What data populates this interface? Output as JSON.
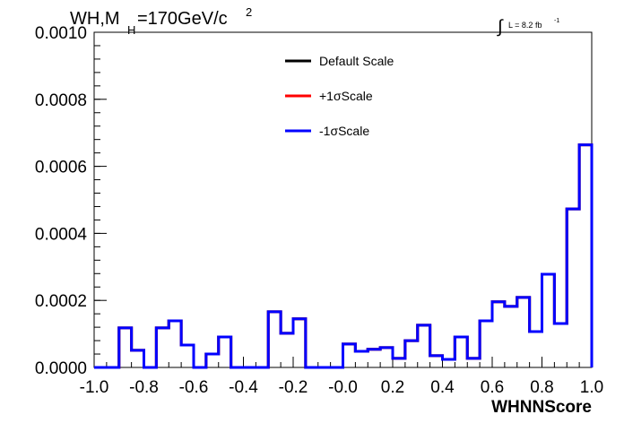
{
  "title": {
    "main": "WH,M",
    "sub": "H",
    "rest": "=170GeV/c",
    "sup": "2"
  },
  "lumi": {
    "text": "L = 8.2 fb",
    "sup": "-1",
    "integral": "∫"
  },
  "chart_data": {
    "type": "histogram-step",
    "xlabel": "WHNNScore",
    "ylabel": "",
    "xlim": [
      -1.0,
      1.0
    ],
    "ylim": [
      0.0,
      0.001
    ],
    "x_ticks": [
      "-1.0",
      "-0.8",
      "-0.6",
      "-0.4",
      "-0.2",
      "-0.0",
      "0.2",
      "0.4",
      "0.6",
      "0.8",
      "1.0"
    ],
    "y_ticks": [
      "0.0000",
      "0.0002",
      "0.0004",
      "0.0006",
      "0.0008",
      "0.0010"
    ],
    "bin_edges": [
      -1.0,
      -0.95,
      -0.9,
      -0.85,
      -0.8,
      -0.75,
      -0.7,
      -0.65,
      -0.6,
      -0.55,
      -0.5,
      -0.45,
      -0.4,
      -0.35,
      -0.3,
      -0.25,
      -0.2,
      -0.15,
      -0.1,
      -0.05,
      0.0,
      0.05,
      0.1,
      0.15,
      0.2,
      0.25,
      0.3,
      0.35,
      0.4,
      0.45,
      0.5,
      0.55,
      0.6,
      0.65,
      0.7,
      0.75,
      0.8,
      0.85,
      0.9,
      0.95,
      1.0
    ],
    "series": [
      {
        "name": "Default Scale",
        "color": "#000000",
        "values": [
          0,
          0,
          0.000118,
          5.1e-05,
          0,
          0.000118,
          0.000139,
          6.7e-05,
          0,
          4e-05,
          9.1e-05,
          0,
          0,
          0,
          0.000166,
          0.000102,
          0.000145,
          0,
          0,
          0,
          7e-05,
          4.8e-05,
          5.4e-05,
          5.9e-05,
          2.7e-05,
          8e-05,
          0.000126,
          3.5e-05,
          2.4e-05,
          9.1e-05,
          2.7e-05,
          0.000139,
          0.000196,
          0.000182,
          0.000209,
          0.000107,
          0.000278,
          0.000131,
          0.000473,
          0.000664
        ]
      },
      {
        "name": "+1σScale",
        "color": "#ff0000",
        "values": [
          0,
          0,
          0.000118,
          5.1e-05,
          0,
          0.000118,
          0.000139,
          6.7e-05,
          0,
          4e-05,
          9.1e-05,
          0,
          0,
          0,
          0.000166,
          0.000102,
          0.000145,
          0,
          0,
          0,
          7e-05,
          4.8e-05,
          5.4e-05,
          5.9e-05,
          2.7e-05,
          8e-05,
          0.000126,
          3.5e-05,
          2.4e-05,
          9.1e-05,
          2.7e-05,
          0.000139,
          0.000196,
          0.000182,
          0.000209,
          0.000107,
          0.000278,
          0.000131,
          0.000473,
          0.000664
        ]
      },
      {
        "name": "-1σScale",
        "color": "#0000ff",
        "values": [
          0,
          0,
          0.000118,
          5.1e-05,
          0,
          0.000118,
          0.000139,
          6.7e-05,
          0,
          4e-05,
          9.1e-05,
          0,
          0,
          0,
          0.000166,
          0.000102,
          0.000145,
          0,
          0,
          0,
          7e-05,
          4.8e-05,
          5.4e-05,
          5.9e-05,
          2.7e-05,
          8e-05,
          0.000126,
          3.5e-05,
          2.4e-05,
          9.1e-05,
          2.7e-05,
          0.000139,
          0.000196,
          0.000182,
          0.000209,
          0.000107,
          0.000278,
          0.000131,
          0.000473,
          0.000664
        ]
      }
    ],
    "legend_position": "top-center",
    "grid": false
  }
}
